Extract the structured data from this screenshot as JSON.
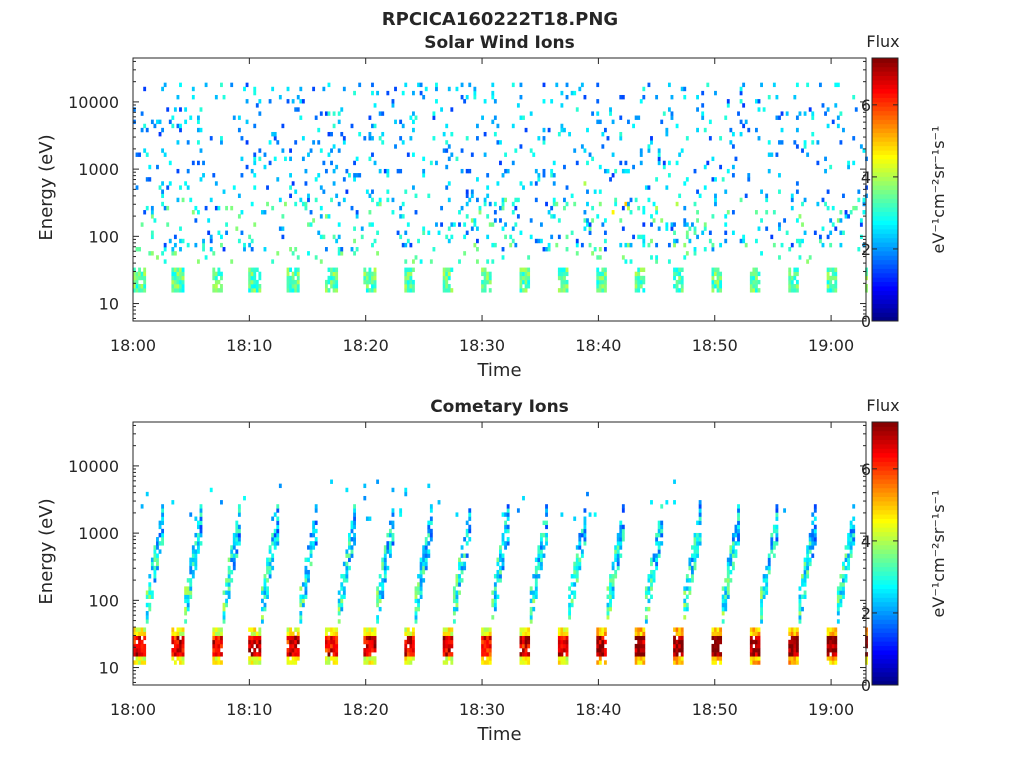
{
  "figure": {
    "filename": "RPCICA160222T18.PNG"
  },
  "chart_data": [
    {
      "type": "heatmap",
      "title": "Solar Wind Ions",
      "xlabel": "Time",
      "ylabel": "Energy (eV)",
      "x_ticks": [
        "18:00",
        "18:10",
        "18:20",
        "18:30",
        "18:40",
        "18:50",
        "19:00"
      ],
      "xlim_minutes": [
        0,
        63
      ],
      "y_scale": "log",
      "y_ticks": [
        10,
        100,
        1000,
        10000
      ],
      "y_tick_labels": [
        "10",
        "100",
        "1000",
        "10000"
      ],
      "ylim": [
        5.5,
        45000
      ],
      "colorbar": {
        "title": "Flux",
        "label": "eV⁻¹cm⁻²sr⁻¹s⁻¹",
        "ticks": [
          0,
          2,
          4,
          6
        ],
        "tick_labels": [
          "0",
          "2",
          "4",
          "6"
        ],
        "range": [
          0,
          7.3
        ],
        "colormap": "jet"
      },
      "sweep_period_minutes": 3.3,
      "features": {
        "low_energy_band_eV": [
          15,
          35
        ],
        "low_energy_band_level": 3.4,
        "background_scatter_level": 2.2,
        "active_interval_minutes": [
          38,
          48
        ]
      }
    },
    {
      "type": "heatmap",
      "title": "Cometary Ions",
      "xlabel": "Time",
      "ylabel": "Energy (eV)",
      "x_ticks": [
        "18:00",
        "18:10",
        "18:20",
        "18:30",
        "18:40",
        "18:50",
        "19:00"
      ],
      "xlim_minutes": [
        0,
        63
      ],
      "y_scale": "log",
      "y_ticks": [
        10,
        100,
        1000,
        10000
      ],
      "y_tick_labels": [
        "10",
        "100",
        "1000",
        "10000"
      ],
      "ylim": [
        5.5,
        45000
      ],
      "colorbar": {
        "title": "Flux",
        "label": "eV⁻¹cm⁻²sr⁻¹s⁻¹",
        "ticks": [
          0,
          2,
          4,
          6
        ],
        "tick_labels": [
          "0",
          "2",
          "4",
          "6"
        ],
        "range": [
          0,
          7.3
        ],
        "colormap": "jet"
      },
      "sweep_period_minutes": 3.3,
      "features": {
        "low_energy_band_eV": [
          11,
          40
        ],
        "low_energy_band_peak_level": 6.8,
        "mid_energy_arcs_eV": [
          60,
          1500
        ],
        "mid_energy_level": 3.2
      }
    }
  ]
}
